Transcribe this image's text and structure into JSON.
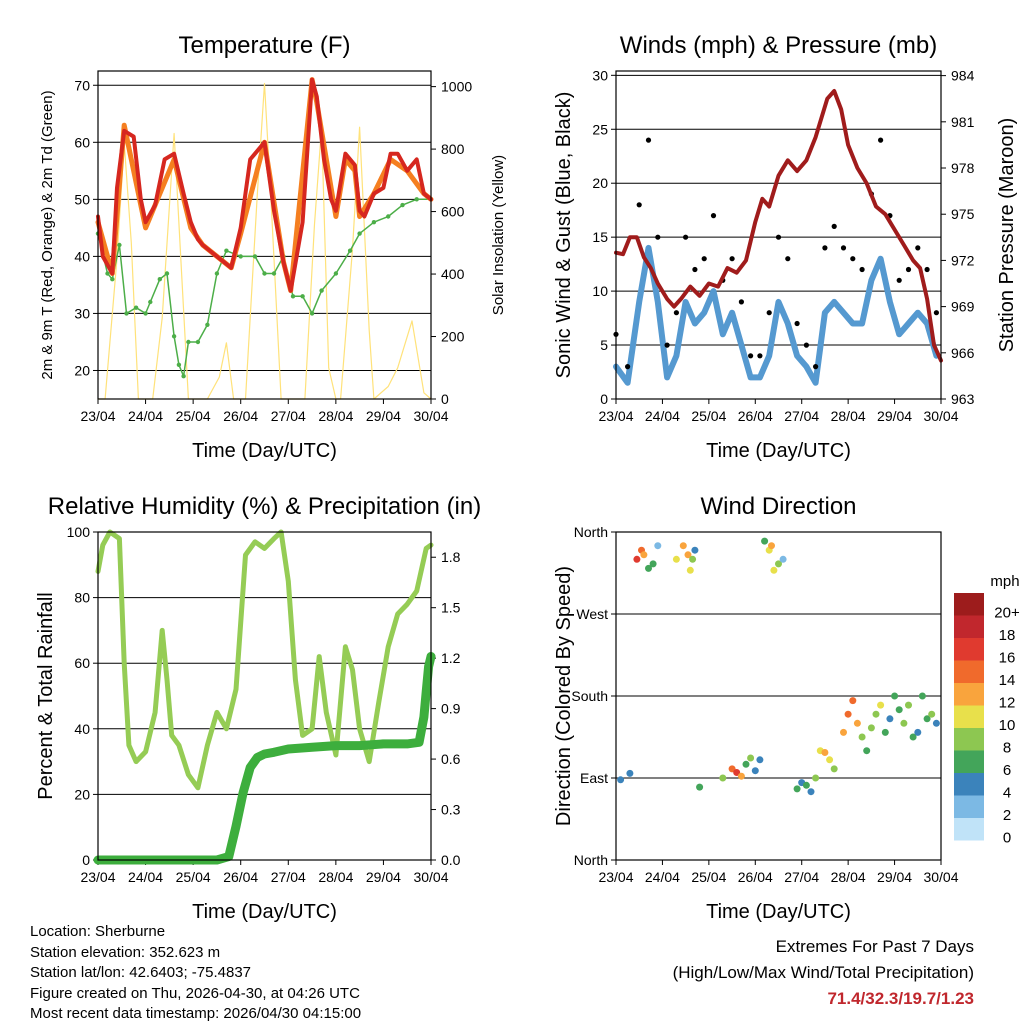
{
  "info": {
    "location": "Location: Sherburne",
    "elevation": "Station elevation: 352.623 m",
    "latlon": "Station lat/lon: 42.6403; -75.4837",
    "created": "Figure created on Thu, 2026-04-30, at 04:26 UTC",
    "recent": "Most recent data timestamp: 2026/04/30 04:15:00"
  },
  "extremes": {
    "title": "Extremes For Past 7 Days",
    "subtitle": "(High/Low/Max Wind/Total Precipitation)",
    "values": "71.4/32.3/19.7/1.23"
  },
  "colors": {
    "temp2m": "#d6271f",
    "temp9m": "#f57f20",
    "dewpoint": "#4cae48",
    "solar": "#ffe27a",
    "gust": "#000000",
    "wind": "#5599d0",
    "pressure": "#a01c1c",
    "rh": "#95cc55",
    "precip": "#3dae3d"
  },
  "chart_data": [
    {
      "id": "temperature",
      "type": "line",
      "title": "Temperature (F)",
      "xlabel": "Time (Day/UTC)",
      "ylabel": "2m & 9m T (Red, Orange) & 2m Td (Green)",
      "y2label": "Solar Insolation (Yellow)",
      "xlim": [
        0,
        7
      ],
      "ylim": [
        15,
        72.5
      ],
      "y2lim": [
        0,
        1050
      ],
      "xticks": [
        "23/04",
        "24/04",
        "25/04",
        "26/04",
        "27/04",
        "28/04",
        "29/04",
        "30/04"
      ],
      "yticks": [
        20,
        30,
        40,
        50,
        60,
        70
      ],
      "y2ticks": [
        0,
        200,
        400,
        600,
        800,
        1000
      ],
      "grid": true,
      "series": [
        {
          "name": "2m T",
          "color_key": "temp2m",
          "x": [
            0,
            0.1,
            0.3,
            0.4,
            0.55,
            0.75,
            0.9,
            1.0,
            1.2,
            1.4,
            1.6,
            1.8,
            1.95,
            2.1,
            2.2,
            2.5,
            2.8,
            3.0,
            3.2,
            3.5,
            3.7,
            3.9,
            4.05,
            4.3,
            4.5,
            4.6,
            4.75,
            4.9,
            5.0,
            5.2,
            5.4,
            5.5,
            5.6,
            5.8,
            6.0,
            6.15,
            6.3,
            6.5,
            6.7,
            6.85,
            7.0
          ],
          "values": [
            47,
            40,
            37,
            52,
            62,
            61,
            50,
            46,
            49,
            57,
            58,
            51,
            46,
            43,
            42,
            40,
            38,
            45,
            57,
            60,
            48,
            39,
            34,
            46,
            71,
            68,
            57,
            50,
            48,
            58,
            56,
            48,
            47,
            51,
            52,
            58,
            58,
            55,
            57,
            51,
            50
          ]
        },
        {
          "name": "9m T",
          "color_key": "temp9m",
          "x": [
            0,
            0.3,
            0.55,
            0.9,
            1.0,
            1.6,
            1.95,
            2.2,
            2.8,
            3.0,
            3.5,
            3.9,
            4.05,
            4.5,
            4.6,
            5.0,
            5.2,
            5.4,
            5.5,
            5.8,
            6.15,
            6.5,
            6.85,
            7.0
          ],
          "values": [
            46,
            37,
            63,
            49,
            45,
            57,
            45,
            42,
            38,
            44,
            60,
            39,
            34,
            71,
            67,
            47,
            57,
            55,
            47,
            51,
            57,
            55,
            51,
            50
          ]
        },
        {
          "name": "2m Td",
          "color_key": "dewpoint",
          "x": [
            0,
            0.2,
            0.3,
            0.45,
            0.6,
            0.8,
            1.0,
            1.1,
            1.3,
            1.45,
            1.6,
            1.7,
            1.8,
            1.9,
            2.1,
            2.3,
            2.5,
            2.7,
            3.0,
            3.3,
            3.5,
            3.7,
            3.9,
            4.1,
            4.3,
            4.5,
            4.7,
            5.0,
            5.3,
            5.5,
            5.8,
            6.1,
            6.4,
            6.7,
            7.0
          ],
          "values": [
            44,
            37,
            36,
            42,
            30,
            31,
            30,
            32,
            36,
            37,
            26,
            21,
            19,
            25,
            25,
            28,
            37,
            41,
            40,
            40,
            37,
            37,
            40,
            33,
            33,
            30,
            34,
            37,
            41,
            44,
            46,
            47,
            49,
            50,
            50
          ]
        },
        {
          "name": "Solar",
          "color_key": "solar",
          "axis": "y2",
          "x": [
            0,
            0.15,
            0.4,
            0.55,
            0.7,
            0.85,
            1.0,
            1.15,
            1.35,
            1.6,
            1.75,
            1.9,
            2.1,
            2.3,
            2.55,
            2.7,
            2.85,
            3.1,
            3.35,
            3.5,
            3.65,
            3.85,
            4.1,
            4.35,
            4.55,
            4.7,
            4.85,
            5.0,
            5.1,
            5.35,
            5.5,
            5.7,
            5.8,
            6.1,
            6.3,
            6.6,
            6.85,
            7.0
          ],
          "values": [
            0,
            0,
            450,
            820,
            500,
            0,
            0,
            0,
            260,
            850,
            420,
            0,
            0,
            0,
            70,
            180,
            0,
            0,
            660,
            1010,
            600,
            0,
            0,
            0,
            560,
            870,
            100,
            0,
            0,
            480,
            870,
            220,
            0,
            40,
            100,
            250,
            20,
            0
          ]
        }
      ]
    },
    {
      "id": "winds",
      "type": "scatter",
      "title": "Winds (mph) & Pressure (mb)",
      "xlabel": "Time (Day/UTC)",
      "ylabel": "Sonic Wind & Gust (Blue, Black)",
      "y2label": "Station Pressure (Maroon)",
      "xlim": [
        0,
        7
      ],
      "ylim": [
        0,
        30.4
      ],
      "y2lim": [
        963,
        984.3
      ],
      "xticks": [
        "23/04",
        "24/04",
        "25/04",
        "26/04",
        "27/04",
        "28/04",
        "29/04",
        "30/04"
      ],
      "yticks": [
        0,
        5,
        10,
        15,
        20,
        25,
        30
      ],
      "y2ticks": [
        963,
        966,
        969,
        972,
        975,
        978,
        981,
        984
      ],
      "grid": true,
      "series": [
        {
          "name": "Gust",
          "color_key": "gust",
          "x": [
            0,
            0.25,
            0.5,
            0.7,
            0.9,
            1.1,
            1.3,
            1.5,
            1.7,
            1.9,
            2.1,
            2.3,
            2.5,
            2.7,
            2.9,
            3.1,
            3.3,
            3.5,
            3.7,
            3.9,
            4.1,
            4.3,
            4.5,
            4.7,
            4.9,
            5.1,
            5.3,
            5.5,
            5.7,
            5.9,
            6.1,
            6.3,
            6.5,
            6.7,
            6.9
          ],
          "values": [
            6,
            3,
            18,
            24,
            15,
            5,
            8,
            15,
            12,
            13,
            17,
            11,
            13,
            9,
            4,
            4,
            8,
            15,
            13,
            7,
            5,
            3,
            14,
            16,
            14,
            13,
            12,
            19,
            24,
            17,
            11,
            12,
            14,
            12,
            8
          ]
        },
        {
          "name": "Wind",
          "color_key": "wind",
          "x": [
            0,
            0.25,
            0.5,
            0.7,
            0.9,
            1.1,
            1.3,
            1.5,
            1.7,
            1.9,
            2.1,
            2.3,
            2.5,
            2.7,
            2.9,
            3.1,
            3.3,
            3.5,
            3.7,
            3.9,
            4.1,
            4.3,
            4.5,
            4.7,
            4.9,
            5.1,
            5.3,
            5.5,
            5.7,
            5.9,
            6.1,
            6.3,
            6.5,
            6.7,
            6.9
          ],
          "values": [
            3,
            1.5,
            9,
            14,
            9,
            2,
            4,
            9,
            7,
            8,
            10,
            6,
            8,
            5,
            2,
            2,
            4,
            9,
            7,
            4,
            3,
            1.5,
            8,
            9,
            8,
            7,
            7,
            11,
            13,
            9,
            6,
            7,
            8,
            7,
            4
          ]
        },
        {
          "name": "Pressure",
          "color_key": "pressure",
          "axis": "y2",
          "x": [
            0,
            0.15,
            0.3,
            0.45,
            0.6,
            0.75,
            0.9,
            1.1,
            1.25,
            1.4,
            1.6,
            1.8,
            2.0,
            2.2,
            2.4,
            2.6,
            2.8,
            3.0,
            3.15,
            3.3,
            3.5,
            3.7,
            3.9,
            4.1,
            4.3,
            4.55,
            4.7,
            4.85,
            5.0,
            5.2,
            5.4,
            5.6,
            5.8,
            6.0,
            6.2,
            6.4,
            6.55,
            6.7,
            6.85,
            7.0
          ],
          "values": [
            972.5,
            972.4,
            973.5,
            973.5,
            972.2,
            971.5,
            970.5,
            969.5,
            969,
            969.5,
            970.3,
            969.7,
            970.5,
            970.3,
            971.5,
            971.2,
            972,
            974.5,
            976,
            975.5,
            977.5,
            978.5,
            977.8,
            978.5,
            980,
            982.5,
            983,
            981.8,
            979.5,
            978,
            977,
            975.5,
            975,
            974,
            973,
            972,
            971.5,
            969.5,
            966.5,
            965.5
          ]
        }
      ]
    },
    {
      "id": "humidity",
      "type": "line",
      "title": "Relative Humidity (%) & Precipitation (in)",
      "xlabel": "Time (Day/UTC)",
      "ylabel": "Percent & Total Rainfall",
      "xlim": [
        0,
        7
      ],
      "ylim": [
        0,
        100
      ],
      "y2lim": [
        0,
        1.95
      ],
      "xticks": [
        "23/04",
        "24/04",
        "25/04",
        "26/04",
        "27/04",
        "28/04",
        "29/04",
        "30/04"
      ],
      "yticks": [
        0,
        20,
        40,
        60,
        80,
        100
      ],
      "y2ticks": [
        "0.0",
        "0.3",
        "0.6",
        "0.9",
        "1.2",
        "1.5",
        "1.8"
      ],
      "grid": true,
      "series": [
        {
          "name": "RH",
          "color_key": "rh",
          "x": [
            0,
            0.1,
            0.25,
            0.45,
            0.55,
            0.65,
            0.8,
            1.0,
            1.2,
            1.35,
            1.45,
            1.55,
            1.7,
            1.9,
            2.1,
            2.3,
            2.5,
            2.7,
            2.9,
            3.1,
            3.3,
            3.5,
            3.7,
            3.85,
            4.0,
            4.15,
            4.3,
            4.5,
            4.65,
            4.8,
            5.0,
            5.2,
            5.35,
            5.5,
            5.7,
            5.9,
            6.1,
            6.3,
            6.5,
            6.7,
            6.9,
            7.0
          ],
          "values": [
            88,
            96,
            100,
            98,
            60,
            35,
            30,
            33,
            45,
            70,
            55,
            38,
            35,
            26,
            22,
            35,
            45,
            40,
            52,
            93,
            97,
            95,
            98,
            100,
            85,
            55,
            38,
            40,
            62,
            45,
            32,
            65,
            58,
            40,
            30,
            48,
            65,
            75,
            78,
            82,
            95,
            96
          ]
        },
        {
          "name": "Precipitation",
          "color_key": "precip",
          "axis": "y2",
          "x": [
            0,
            1.0,
            2.0,
            2.5,
            2.75,
            2.9,
            3.05,
            3.2,
            3.35,
            3.5,
            3.7,
            4.0,
            4.5,
            5.0,
            5.5,
            6.0,
            6.5,
            6.75,
            6.85,
            6.9,
            6.95,
            7.0
          ],
          "values": [
            0,
            0,
            0,
            0,
            0.02,
            0.2,
            0.4,
            0.55,
            0.61,
            0.63,
            0.64,
            0.66,
            0.67,
            0.68,
            0.68,
            0.69,
            0.69,
            0.7,
            0.85,
            1.0,
            1.15,
            1.21
          ]
        }
      ]
    },
    {
      "id": "direction",
      "type": "scatter",
      "title": "Wind Direction",
      "xlabel": "Time (Day/UTC)",
      "ylabel": "Direction (Colored By Speed)",
      "xlim": [
        0,
        7
      ],
      "ylim": [
        0,
        360
      ],
      "xticks": [
        "23/04",
        "24/04",
        "25/04",
        "26/04",
        "27/04",
        "28/04",
        "29/04",
        "30/04"
      ],
      "yticks": [
        "North",
        "East",
        "South",
        "West",
        "North"
      ],
      "legend_title": "mph",
      "legend_labels": [
        "20+",
        "18",
        "16",
        "14",
        "12",
        "10",
        "8",
        "6",
        "4",
        "2",
        "0"
      ],
      "legend_colors": [
        "#9d1c1c",
        "#c1272d",
        "#e03a2f",
        "#f06a2c",
        "#f9a43d",
        "#e8e04b",
        "#8dc751",
        "#43a55a",
        "#3b83bb",
        "#7cb9e4",
        "#c0e3f8"
      ],
      "legend_position": "right",
      "x": [
        0.1,
        0.3,
        0.45,
        0.55,
        0.6,
        0.7,
        0.8,
        0.9,
        1.3,
        1.45,
        1.55,
        1.6,
        1.65,
        1.7,
        1.8,
        2.3,
        2.5,
        2.6,
        2.7,
        2.8,
        2.9,
        3.0,
        3.1,
        3.2,
        3.3,
        3.35,
        3.4,
        3.5,
        3.6,
        3.9,
        4.0,
        4.1,
        4.2,
        4.3,
        4.4,
        4.5,
        4.6,
        4.7,
        4.9,
        5.0,
        5.1,
        5.2,
        5.3,
        5.4,
        5.5,
        5.6,
        5.7,
        5.8,
        5.9,
        6.0,
        6.1,
        6.2,
        6.3,
        6.4,
        6.5,
        6.6,
        6.7,
        6.8,
        6.9
      ],
      "values": [
        88,
        95,
        330,
        340,
        335,
        320,
        325,
        345,
        330,
        345,
        335,
        318,
        330,
        340,
        80,
        90,
        100,
        96,
        92,
        105,
        112,
        98,
        110,
        350,
        340,
        345,
        318,
        325,
        330,
        78,
        85,
        82,
        75,
        90,
        120,
        118,
        110,
        100,
        140,
        160,
        175,
        150,
        135,
        120,
        145,
        160,
        170,
        140,
        155,
        180,
        165,
        150,
        170,
        135,
        140,
        180,
        155,
        160,
        150
      ],
      "speeds": [
        3,
        4,
        16,
        14,
        12,
        6,
        5,
        2,
        10,
        11,
        12,
        9,
        7,
        4,
        5,
        8,
        13,
        15,
        11,
        6,
        7,
        3,
        4,
        5,
        10,
        11,
        9,
        8,
        2,
        5,
        4,
        6,
        3,
        8,
        9,
        11,
        10,
        7,
        12,
        13,
        14,
        11,
        8,
        6,
        7,
        8,
        9,
        5,
        4,
        6,
        5,
        7,
        8,
        6,
        4,
        5,
        6,
        7,
        3
      ]
    }
  ]
}
